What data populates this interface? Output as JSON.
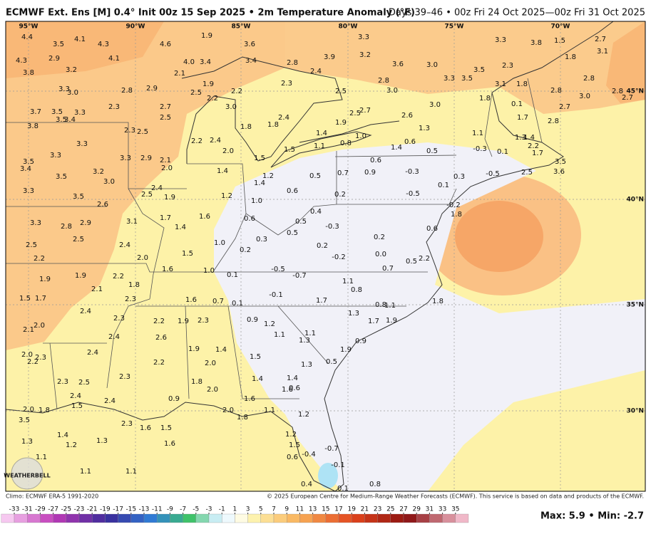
{
  "header": {
    "title": "ECMWF Ext. Ens [M] 0.4° Init 00z 15 Sep 2025 • 2m Temperature Anomaly (°F)",
    "valid": "Days 39–46 • 00z Fri 24 Oct 2025—00z Fri 31 Oct 2025"
  },
  "map": {
    "longitudes": [
      "95°W",
      "90°W",
      "85°W",
      "80°W",
      "75°W",
      "70°W"
    ],
    "latitudes": [
      "45°N",
      "40°N",
      "35°N",
      "30°N"
    ],
    "logo": "WEATHERBELL",
    "values": [
      "4.4",
      "3.5",
      "4.1",
      "4.3",
      "4.6",
      "1.9",
      "3.6",
      "4.3",
      "2.9",
      "4.1",
      "4.0",
      "3.4",
      "3.4",
      "2.8",
      "3.9",
      "3.3",
      "3.2",
      "3.6",
      "3.0",
      "3.3",
      "3.8",
      "1.5",
      "2.7",
      "3.1",
      "1.8",
      "3.8",
      "3.2",
      "2.1",
      "1.9",
      "2.5",
      "2.2",
      "2.3",
      "2.4",
      "2.5",
      "2.8",
      "3.3",
      "3.5",
      "3.5",
      "2.3",
      "3.1",
      "1.8",
      "2.8",
      "2.8",
      "2.8",
      "3.3",
      "3.0",
      "2.8",
      "2.9",
      "3.0",
      "3.0",
      "2.7",
      "1.8",
      "0.1",
      "2.7",
      "3.7",
      "3.5",
      "3.3",
      "2.3",
      "2.7",
      "2.5",
      "2.2",
      "3.0",
      "2.4",
      "1.8",
      "1.8",
      "2.5",
      "2.7",
      "2.6",
      "3.0",
      "1.3",
      "1.7",
      "2.8",
      "3.5",
      "3.4",
      "3.8",
      "2.3",
      "2.5",
      "1.4",
      "1.9",
      "1.0",
      "1.1",
      "1.4",
      "2.2",
      "1.3",
      "3.3",
      "2.2",
      "2.4",
      "2.0",
      "1.5",
      "1.5",
      "1.1",
      "0.8",
      "0.6",
      "1.4",
      "0.6",
      "0.5",
      "-0.3",
      "0.1",
      "1.7",
      "3.3",
      "3.3",
      "2.9",
      "2.1",
      "2.0",
      "1.4",
      "1.2",
      "1.4",
      "0.5",
      "0.7",
      "0.9",
      "-0.3",
      "0.3",
      "-0.5",
      "2.5",
      "3.5",
      "3.6",
      "3.5",
      "3.4",
      "3.5",
      "3.2",
      "3.0",
      "3.3",
      "3.5",
      "2.4",
      "2.5",
      "1.9",
      "1.2",
      "0.6",
      "0.2",
      "-0.5",
      "0.1",
      "1.0",
      "2.6",
      "1.7",
      "1.6",
      "0.4",
      "0.5",
      "-0.2",
      "1.8",
      "0.6",
      "-0.3",
      "3.3",
      "2.8",
      "2.9",
      "3.1",
      "1.4",
      "0.2",
      "0.5",
      "0.6",
      "2.5",
      "1.0",
      "0.3",
      "0.2",
      "2.5",
      "2.4",
      "0.2",
      "1.5",
      "0.0",
      "2.2",
      "2.0",
      "-0.2",
      "0.5",
      "2.2",
      "1.6",
      "1.0",
      "-0.5",
      "0.7",
      "0.1",
      "-0.7",
      "1.9",
      "1.9",
      "2.2",
      "1.8",
      "1.1",
      "2.1",
      "0.8",
      "-0.1",
      "1.5",
      "1.7",
      "2.3",
      "1.6",
      "0.7",
      "0.1",
      "1.7",
      "0.8",
      "1.1",
      "1.8",
      "2.4",
      "2.3",
      "1.3",
      "0.9",
      "1.2",
      "2.2",
      "1.9",
      "2.3",
      "1.7",
      "1.9",
      "2.0",
      "2.1",
      "2.4",
      "2.6",
      "1.1",
      "1.1",
      "1.3",
      "0.9",
      "1.9",
      "1.4",
      "1.9",
      "2.4",
      "2.0",
      "2.3",
      "2.2",
      "1.5",
      "2.2",
      "2.0",
      "0.5",
      "1.3",
      "2.3",
      "2.3",
      "2.5",
      "1.4",
      "1.4",
      "1.8",
      "1.6",
      "0.6",
      "2.4",
      "0.9",
      "2.4",
      "2.0",
      "1.6",
      "1.5",
      "2.0",
      "1.8",
      "2.0",
      "1.1",
      "1.8",
      "1.2",
      "3.5",
      "2.3",
      "1.6",
      "1.5",
      "1.4",
      "1.3",
      "1.2",
      "1.3",
      "1.2",
      "1.6",
      "1.5",
      "-0.7",
      "-0.4",
      "0.6",
      "1.1",
      "-0.1",
      "1.1",
      "1.1",
      "0.4",
      "0.1",
      "0.8"
    ]
  },
  "footer": {
    "climo": "Climo: ECMWF ERA-5 1991-2020",
    "copyright": "© 2025 European Centre for Medium-Range Weather Forecasts (ECMWF). This service is based on data and products of the ECMWF.",
    "maxmin": "Max: 5.9 • Min: -2.7"
  },
  "colorbar": {
    "ticks": [
      -33,
      -31,
      -29,
      -27,
      -25,
      -23,
      -21,
      -19,
      -17,
      -15,
      -13,
      -11,
      -9,
      -7,
      -5,
      -3,
      -1,
      1,
      3,
      5,
      7,
      9,
      11,
      13,
      15,
      17,
      19,
      21,
      23,
      25,
      27,
      29,
      31,
      33,
      35
    ]
  }
}
